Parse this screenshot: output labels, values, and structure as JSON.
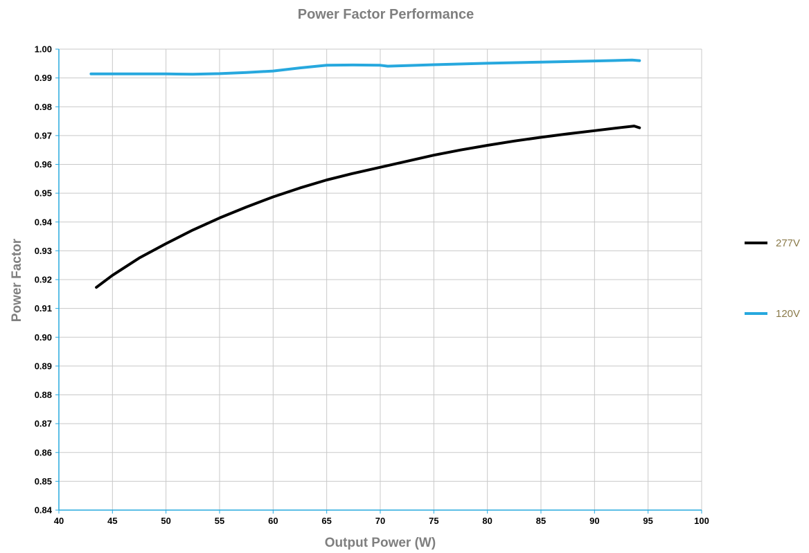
{
  "chart_data": {
    "type": "line",
    "title": "Power Factor Performance",
    "xlabel": "Output Power (W)",
    "ylabel": "Power Factor",
    "xlim": [
      40,
      100
    ],
    "ylim": [
      0.84,
      1.0
    ],
    "x_ticks": [
      "40",
      "45",
      "50",
      "55",
      "60",
      "65",
      "70",
      "75",
      "80",
      "85",
      "90",
      "95",
      "100"
    ],
    "y_ticks": [
      "0.84",
      "0.85",
      "0.86",
      "0.87",
      "0.88",
      "0.89",
      "0.90",
      "0.91",
      "0.92",
      "0.93",
      "0.94",
      "0.95",
      "0.96",
      "0.97",
      "0.98",
      "0.99",
      "1.00"
    ],
    "grid": true,
    "legend_position": "right",
    "series": [
      {
        "name": "277V",
        "color": "#000000",
        "x": [
          43.5,
          45,
          47.5,
          50,
          52.5,
          55,
          57.5,
          60,
          62.5,
          65,
          67.5,
          70,
          72.5,
          75,
          77.5,
          80,
          82.5,
          85,
          87.5,
          90,
          92.5,
          93.7,
          94.2
        ],
        "y": [
          0.9173,
          0.9215,
          0.9275,
          0.9325,
          0.9372,
          0.9414,
          0.9452,
          0.9487,
          0.9518,
          0.9546,
          0.9569,
          0.959,
          0.9611,
          0.9632,
          0.965,
          0.9666,
          0.9681,
          0.9694,
          0.9706,
          0.9717,
          0.9728,
          0.9733,
          0.9727
        ]
      },
      {
        "name": "120V",
        "color": "#27a8de",
        "x": [
          43,
          45,
          50,
          52.5,
          55,
          57.5,
          60,
          62.5,
          65,
          67.5,
          70,
          70.7,
          72.5,
          75,
          80,
          85,
          90,
          93.5,
          94.2
        ],
        "y": [
          0.9914,
          0.9914,
          0.9914,
          0.9913,
          0.9915,
          0.9919,
          0.9924,
          0.9935,
          0.9944,
          0.9945,
          0.9944,
          0.9941,
          0.9943,
          0.9946,
          0.9951,
          0.9955,
          0.9959,
          0.9962,
          0.996
        ]
      }
    ]
  }
}
